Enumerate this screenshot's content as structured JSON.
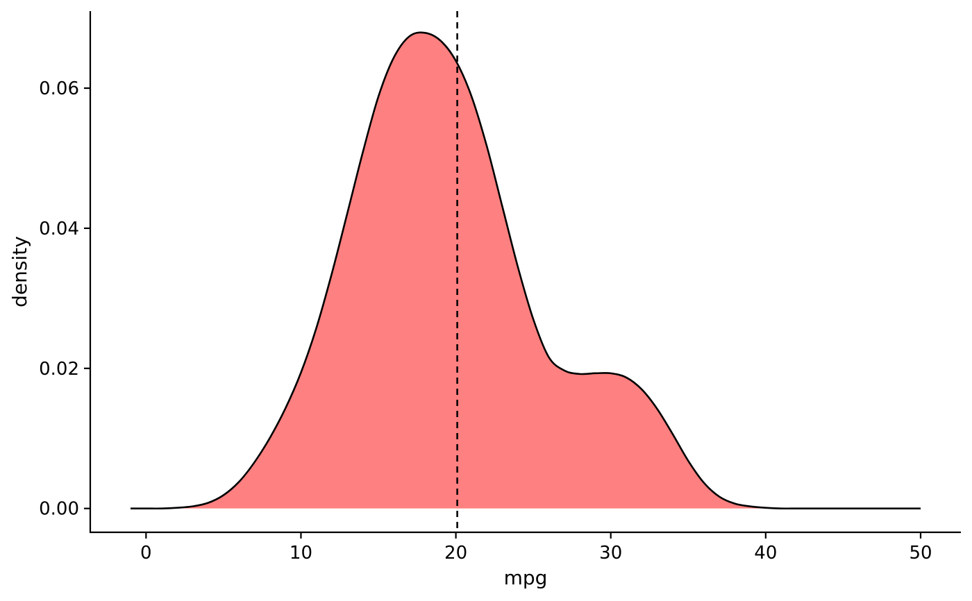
{
  "chart_data": {
    "type": "area",
    "xlabel": "mpg",
    "ylabel": "density",
    "xlim": [
      -3.6,
      52.6
    ],
    "ylim": [
      -0.0034,
      0.071
    ],
    "xticks": [
      0,
      10,
      20,
      30,
      40,
      50
    ],
    "xtick_labels": [
      "0",
      "10",
      "20",
      "30",
      "40",
      "50"
    ],
    "yticks": [
      0.0,
      0.02,
      0.04,
      0.06
    ],
    "ytick_labels": [
      "0.00",
      "0.02",
      "0.04",
      "0.06"
    ],
    "grid": false,
    "legend": "none",
    "series": [
      {
        "fill_color": "#ff8080",
        "line_color": "#000000",
        "x": [
          -1,
          0,
          1,
          2,
          3,
          4,
          5,
          6,
          7,
          8,
          9,
          10,
          11,
          12,
          13,
          14,
          15,
          16,
          17,
          18,
          19,
          20,
          21,
          22,
          23,
          24,
          25,
          26,
          27,
          28,
          29,
          30,
          31,
          32,
          33,
          34,
          35,
          36,
          37,
          38,
          39,
          40,
          41,
          42,
          43,
          44,
          45,
          46,
          47,
          48,
          49,
          50
        ],
        "y": [
          0.0,
          0.0,
          0.0,
          0.0001,
          0.0003,
          0.0008,
          0.0019,
          0.0038,
          0.0066,
          0.0101,
          0.0143,
          0.0194,
          0.0258,
          0.0336,
          0.0422,
          0.0509,
          0.0588,
          0.0644,
          0.0674,
          0.0679,
          0.0668,
          0.0639,
          0.0589,
          0.0517,
          0.0431,
          0.0345,
          0.027,
          0.0216,
          0.0197,
          0.0192,
          0.0193,
          0.0193,
          0.0187,
          0.017,
          0.0142,
          0.0106,
          0.0068,
          0.0037,
          0.0017,
          0.0007,
          0.0003,
          0.0001,
          0.0,
          0.0,
          0.0,
          0.0,
          0.0,
          0.0,
          0.0,
          0.0,
          0.0,
          0.0
        ]
      }
    ],
    "annotations": [
      {
        "type": "vline",
        "x": 20.09,
        "style": "dashed",
        "color": "#000000"
      }
    ]
  }
}
